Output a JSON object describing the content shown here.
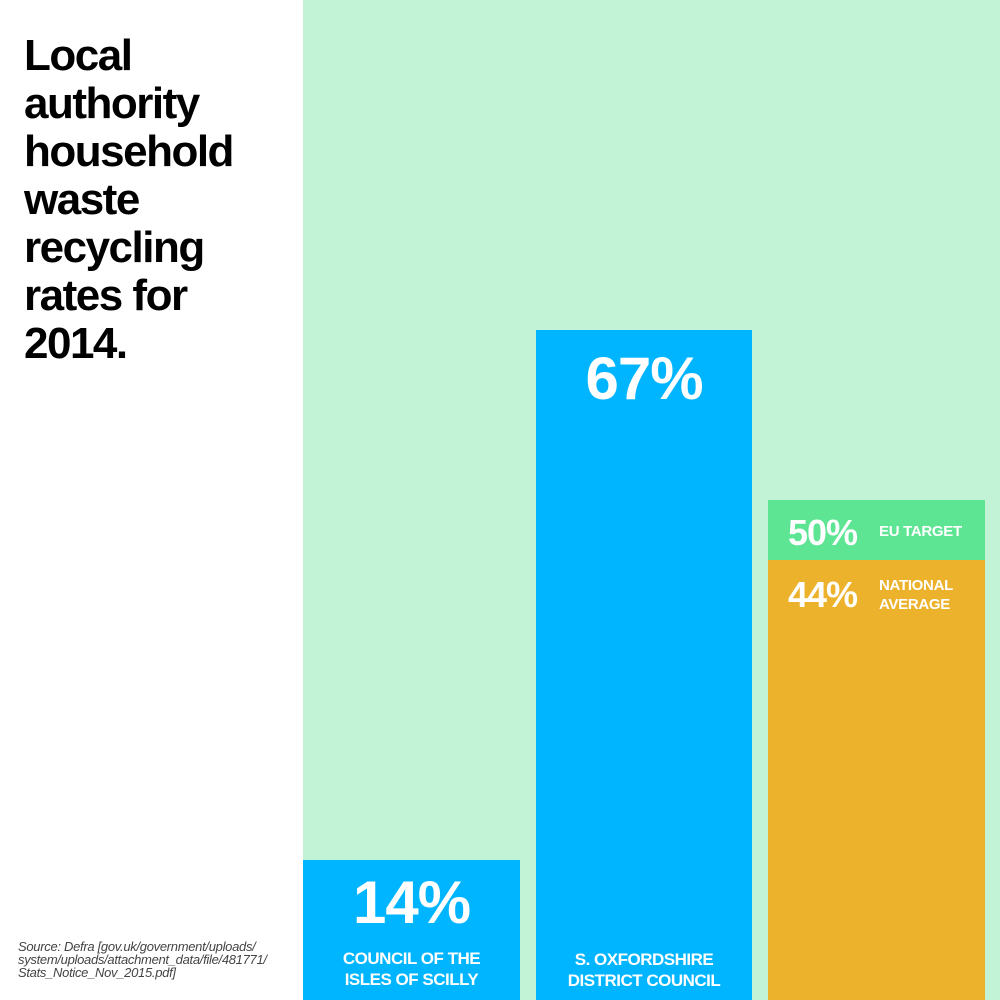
{
  "chart_data": {
    "type": "bar",
    "title": "Local authority household waste recycling rates for 2014.",
    "source": "Source: Defra [gov.uk/government/uploads/ system/uploads/attachment_data/file/481771/ Stats_Notice_Nov_2015.pdf]",
    "ylim": [
      0,
      100
    ],
    "unit": "%",
    "bars": [
      {
        "label": "COUNCIL OF THE ISLES OF SCILLY",
        "value": 14,
        "display": "14%",
        "color": "#00b5ff"
      },
      {
        "label": "S. OXFORDSHIRE DISTRICT COUNCIL",
        "value": 67,
        "display": "67%",
        "color": "#00b5ff"
      },
      {
        "label": "NATIONAL AVERAGE",
        "value": 44,
        "display": "44%",
        "color": "#edb22b",
        "reference": {
          "label": "EU TARGET",
          "value": 50,
          "display": "50%",
          "color": "#5de594"
        }
      }
    ]
  },
  "colors": {
    "background": "#c3f3d6"
  }
}
